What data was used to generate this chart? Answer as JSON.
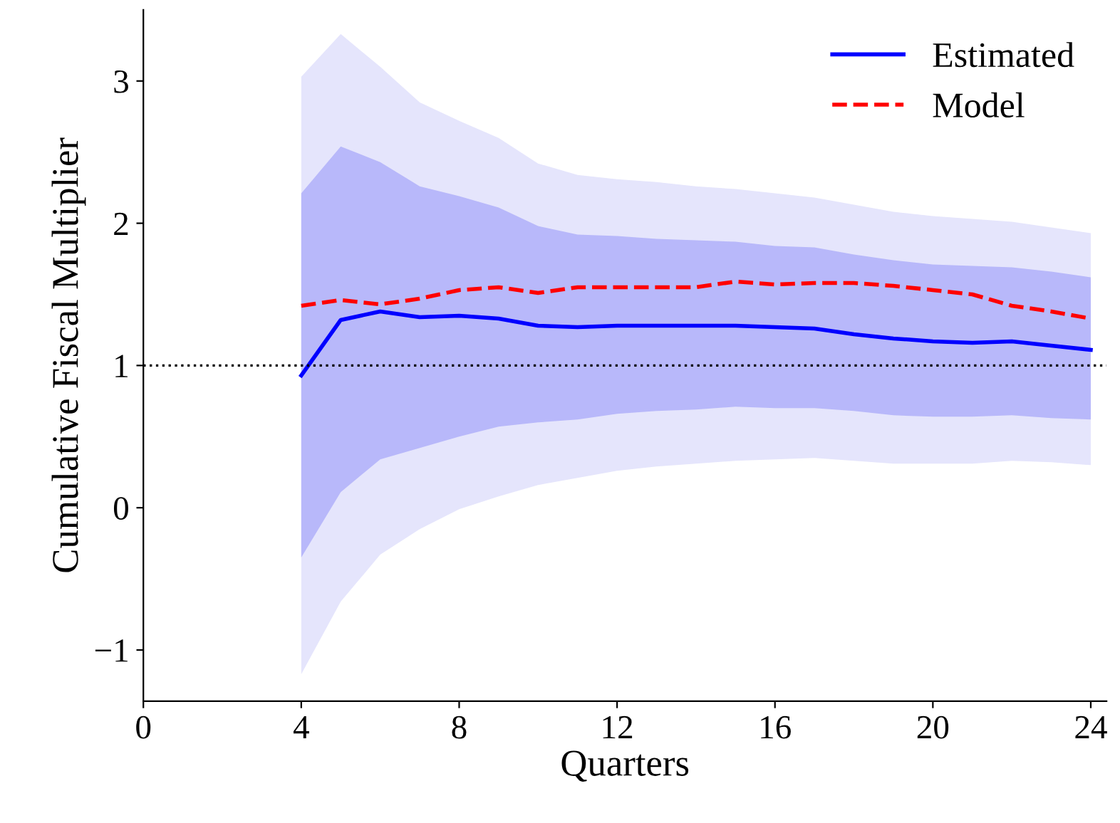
{
  "chart_data": {
    "type": "line",
    "xlabel": "Quarters",
    "ylabel": "Cumulative Fiscal Multiplier",
    "x": [
      4,
      5,
      6,
      7,
      8,
      9,
      10,
      11,
      12,
      13,
      14,
      15,
      16,
      17,
      18,
      19,
      20,
      21,
      22,
      23,
      24
    ],
    "series": [
      {
        "color": "#e5e5fc",
        "values": [
          null,
          null,
          null,
          null,
          null,
          null,
          null,
          null,
          null,
          null,
          null,
          null,
          null,
          null,
          null,
          null,
          null,
          null,
          null,
          null,
          null
        ],
        "upper": [
          3.03,
          3.33,
          3.1,
          2.85,
          2.72,
          2.6,
          2.42,
          2.34,
          2.31,
          2.29,
          2.26,
          2.24,
          2.21,
          2.18,
          2.13,
          2.08,
          2.05,
          2.03,
          2.01,
          1.97,
          1.93
        ],
        "lower": [
          -1.17,
          -0.66,
          -0.33,
          -0.15,
          -0.01,
          0.08,
          0.16,
          0.21,
          0.26,
          0.29,
          0.31,
          0.33,
          0.34,
          0.35,
          0.33,
          0.31,
          0.31,
          0.31,
          0.33,
          0.32,
          0.3
        ]
      },
      {
        "color": "#b8b8fa",
        "values": [
          null,
          null,
          null,
          null,
          null,
          null,
          null,
          null,
          null,
          null,
          null,
          null,
          null,
          null,
          null,
          null,
          null,
          null,
          null,
          null,
          null
        ],
        "upper": [
          2.21,
          2.54,
          2.43,
          2.26,
          2.19,
          2.11,
          1.98,
          1.92,
          1.91,
          1.89,
          1.88,
          1.87,
          1.84,
          1.83,
          1.78,
          1.74,
          1.71,
          1.7,
          1.69,
          1.66,
          1.62
        ],
        "lower": [
          -0.35,
          0.11,
          0.34,
          0.42,
          0.5,
          0.57,
          0.6,
          0.62,
          0.66,
          0.68,
          0.69,
          0.71,
          0.7,
          0.7,
          0.68,
          0.65,
          0.64,
          0.64,
          0.65,
          0.63,
          0.62
        ]
      },
      {
        "name": "Estimated",
        "color": "#0000ff",
        "line_style": "solid",
        "values": [
          0.93,
          1.32,
          1.38,
          1.34,
          1.35,
          1.33,
          1.28,
          1.27,
          1.28,
          1.28,
          1.28,
          1.28,
          1.27,
          1.26,
          1.22,
          1.19,
          1.17,
          1.16,
          1.17,
          1.14,
          1.11
        ]
      },
      {
        "name": "Model",
        "color": "#ff0000",
        "line_style": "dashed",
        "values": [
          1.42,
          1.46,
          1.43,
          1.47,
          1.53,
          1.55,
          1.51,
          1.55,
          1.55,
          1.55,
          1.55,
          1.59,
          1.57,
          1.58,
          1.58,
          1.56,
          1.53,
          1.5,
          1.42,
          1.38,
          1.33
        ]
      }
    ],
    "xlim": [
      0,
      24.4
    ],
    "xticks": [
      0,
      4,
      8,
      12,
      16,
      20,
      24
    ],
    "ylim": [
      -1.36,
      3.5
    ],
    "yticks": [
      {
        "value": -1,
        "label": "−1"
      },
      0,
      1,
      2,
      3
    ],
    "ref_lines": [
      {
        "axis": "y",
        "value": 1,
        "color": "#000000",
        "line_style": "dotted"
      }
    ],
    "legend": "top right",
    "grid": false
  }
}
